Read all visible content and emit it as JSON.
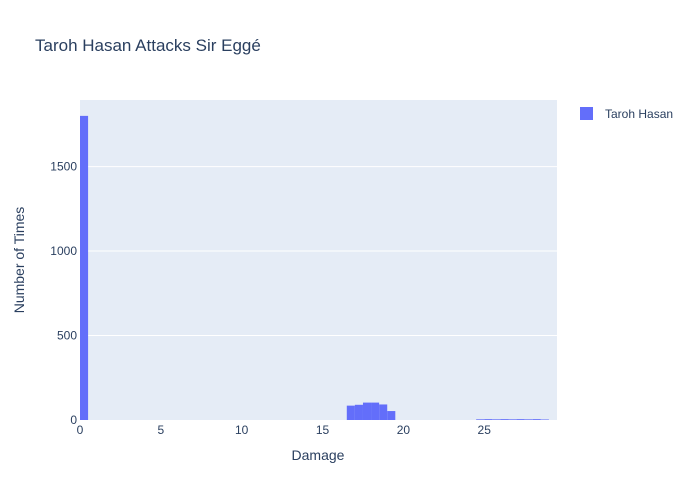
{
  "chart_data": {
    "type": "bar",
    "title": "Taroh Hasan Attacks Sir Eggé",
    "xlabel": "Damage",
    "ylabel": "Number of Times",
    "xlim": [
      0,
      29.5
    ],
    "ylim": [
      0,
      1894
    ],
    "xticks": [
      0,
      5,
      10,
      15,
      20,
      25
    ],
    "yticks": [
      0,
      500,
      1000,
      1500
    ],
    "grid": true,
    "legend_position": "top-right",
    "bin_width": 0.5,
    "series": [
      {
        "name": "Taroh Hasan",
        "color": "#636efa",
        "bins": [
          {
            "x": 0,
            "count": 1800
          },
          {
            "x": 16.5,
            "count": 85
          },
          {
            "x": 17,
            "count": 90
          },
          {
            "x": 17.5,
            "count": 103
          },
          {
            "x": 18,
            "count": 103
          },
          {
            "x": 18.5,
            "count": 92
          },
          {
            "x": 19,
            "count": 53
          },
          {
            "x": 24.5,
            "count": 4
          },
          {
            "x": 25,
            "count": 5
          },
          {
            "x": 25.5,
            "count": 4
          },
          {
            "x": 26,
            "count": 5
          },
          {
            "x": 26.5,
            "count": 4
          },
          {
            "x": 27,
            "count": 5
          },
          {
            "x": 27.5,
            "count": 4
          },
          {
            "x": 28,
            "count": 5
          },
          {
            "x": 28.5,
            "count": 3
          }
        ]
      }
    ]
  }
}
